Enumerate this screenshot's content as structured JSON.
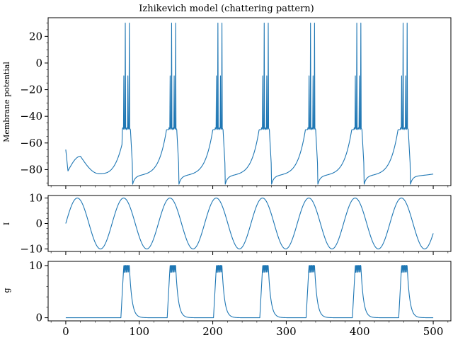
{
  "chart_data": [
    {
      "type": "line",
      "title": "Izhikevich model (chattering pattern)",
      "ylabel": "Membrane potential",
      "xlabel": "",
      "xlim": [
        -24,
        524
      ],
      "ylim": [
        -92,
        34
      ],
      "yticks": [
        {
          "value": 20,
          "label": "20"
        },
        {
          "value": 0,
          "label": "0"
        },
        {
          "value": -20,
          "label": "−20"
        },
        {
          "value": -40,
          "label": "−40"
        },
        {
          "value": -60,
          "label": "−60"
        },
        {
          "value": -80,
          "label": "−80"
        }
      ],
      "yminor_step": 5,
      "xticks": [
        0,
        100,
        200,
        300,
        400,
        500
      ],
      "xminor_step": 20,
      "show_xticklabels": false,
      "grid": false,
      "color": "#1f77b4",
      "model": {
        "v_init": -65,
        "reset": -50,
        "peak": 30,
        "rest": -70,
        "trough": -85,
        "burst_onsets": [
          77,
          140,
          203,
          266,
          329,
          392,
          455
        ],
        "spikes_per_burst": 6,
        "t_end": 500,
        "dt": 0.5
      }
    },
    {
      "type": "line",
      "ylabel": "I",
      "xlabel": "",
      "xlim": [
        -24,
        524
      ],
      "ylim": [
        -11,
        11
      ],
      "yticks": [
        {
          "value": 10,
          "label": "10"
        },
        {
          "value": 0,
          "label": "0"
        },
        {
          "value": -10,
          "label": "−10"
        }
      ],
      "yminor_step": 2,
      "xticks": [
        0,
        100,
        200,
        300,
        400,
        500
      ],
      "xminor_step": 20,
      "show_xticklabels": false,
      "grid": false,
      "color": "#1f77b4",
      "model": {
        "amplitude": 10,
        "period": 63,
        "t_end": 500,
        "dt": 0.5
      }
    },
    {
      "type": "line",
      "ylabel": "g",
      "xlabel": "",
      "xlim": [
        -24,
        524
      ],
      "ylim": [
        -0.6,
        10.8
      ],
      "yticks": [
        {
          "value": 10,
          "label": "10"
        },
        {
          "value": 0,
          "label": "0"
        }
      ],
      "yminor_step": 2,
      "xticks": [
        0,
        100,
        200,
        300,
        400,
        500
      ],
      "xticklabels": [
        "0",
        "100",
        "200",
        "300",
        "400",
        "500"
      ],
      "xminor_step": 20,
      "show_xticklabels": true,
      "grid": false,
      "color": "#1f77b4",
      "model": {
        "peak": 10.2,
        "burst_onsets": [
          75,
          138,
          201,
          264,
          327,
          390,
          453
        ],
        "rise": 4,
        "plateau": 8,
        "decay_tau": 3.5,
        "t_end": 500,
        "dt": 0.5
      }
    }
  ]
}
